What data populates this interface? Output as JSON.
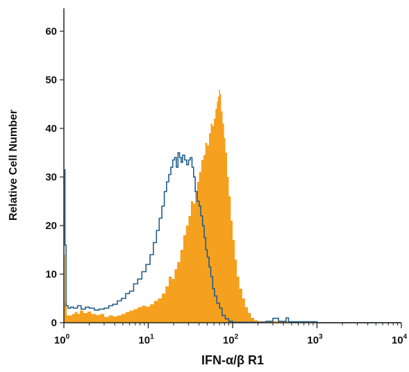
{
  "chart_data": {
    "type": "area",
    "title": "",
    "xlabel": "IFN-α/β R1",
    "ylabel": "Relative Cell Number",
    "xscale": "log",
    "xlim": [
      1,
      10000
    ],
    "ylim": [
      0,
      65
    ],
    "yticks": [
      0,
      10,
      20,
      30,
      40,
      50,
      60
    ],
    "xticks": [
      {
        "value": 1,
        "base": "10",
        "exp": "0"
      },
      {
        "value": 10,
        "base": "10",
        "exp": "1"
      },
      {
        "value": 100,
        "base": "10",
        "exp": "2"
      },
      {
        "value": 1000,
        "base": "10",
        "exp": "3"
      },
      {
        "value": 10000,
        "base": "10",
        "exp": "4"
      }
    ],
    "grid": false,
    "legend": "none",
    "series": [
      {
        "style": "filled-histogram",
        "color": "#f5a01e",
        "points": [
          [
            1.0,
            14
          ],
          [
            1.03,
            4
          ],
          [
            1.08,
            1.5
          ],
          [
            1.15,
            1.5
          ],
          [
            1.25,
            1.8
          ],
          [
            1.35,
            2.2
          ],
          [
            1.45,
            1.8
          ],
          [
            1.55,
            2.5
          ],
          [
            1.7,
            2.0
          ],
          [
            1.9,
            2.3
          ],
          [
            2.1,
            1.8
          ],
          [
            2.4,
            1.6
          ],
          [
            2.7,
            1.8
          ],
          [
            3.0,
            1.2
          ],
          [
            3.4,
            1.5
          ],
          [
            3.8,
            1.3
          ],
          [
            4.3,
            1.5
          ],
          [
            4.8,
            1.8
          ],
          [
            5.4,
            2.2
          ],
          [
            6.0,
            2.5
          ],
          [
            6.7,
            2.8
          ],
          [
            7.5,
            3.2
          ],
          [
            8.4,
            3.5
          ],
          [
            9.4,
            3.3
          ],
          [
            10.5,
            3.8
          ],
          [
            11.7,
            4.5
          ],
          [
            13.0,
            5.0
          ],
          [
            14.5,
            6.0
          ],
          [
            16.0,
            7.5
          ],
          [
            17.5,
            9.5
          ],
          [
            19.0,
            9.0
          ],
          [
            20.5,
            11.0
          ],
          [
            22.0,
            12.5
          ],
          [
            24.0,
            15.0
          ],
          [
            26.0,
            18.0
          ],
          [
            28.0,
            20.0
          ],
          [
            30.0,
            22.0
          ],
          [
            32.0,
            25.0
          ],
          [
            34.0,
            24.5
          ],
          [
            36.0,
            27.0
          ],
          [
            38.0,
            29.0
          ],
          [
            40.0,
            31.0
          ],
          [
            42.5,
            33.5
          ],
          [
            45.0,
            34.5
          ],
          [
            47.5,
            37.0
          ],
          [
            50.0,
            36.5
          ],
          [
            52.5,
            39.0
          ],
          [
            55.0,
            41.0
          ],
          [
            57.5,
            40.5
          ],
          [
            60.0,
            42.0
          ],
          [
            62.5,
            44.0
          ],
          [
            65.0,
            45.5
          ],
          [
            67.0,
            46.5
          ],
          [
            69.0,
            48.0
          ],
          [
            71.0,
            47.0
          ],
          [
            73.0,
            43.5
          ],
          [
            76.0,
            41.0
          ],
          [
            79.0,
            38.0
          ],
          [
            82.0,
            35.0
          ],
          [
            86.0,
            30.0
          ],
          [
            90.0,
            26.0
          ],
          [
            95.0,
            21.0
          ],
          [
            100.0,
            17.0
          ],
          [
            106.0,
            13.0
          ],
          [
            112.0,
            9.5
          ],
          [
            120.0,
            7.0
          ],
          [
            130.0,
            5.0
          ],
          [
            140.0,
            3.2
          ],
          [
            152.0,
            2.0
          ],
          [
            165.0,
            1.0
          ],
          [
            180.0,
            0.5
          ],
          [
            200.0,
            0.3
          ],
          [
            500.0,
            0.1
          ]
        ]
      },
      {
        "style": "step-outline",
        "color": "#1f5c8a",
        "points": [
          [
            1.0,
            31.5
          ],
          [
            1.03,
            16.0
          ],
          [
            1.06,
            3.5
          ],
          [
            1.12,
            3.0
          ],
          [
            1.2,
            3.2
          ],
          [
            1.3,
            3.0
          ],
          [
            1.45,
            3.5
          ],
          [
            1.6,
            2.8
          ],
          [
            1.8,
            3.2
          ],
          [
            2.0,
            3.0
          ],
          [
            2.3,
            2.6
          ],
          [
            2.6,
            2.8
          ],
          [
            3.0,
            3.0
          ],
          [
            3.4,
            3.5
          ],
          [
            3.8,
            3.8
          ],
          [
            4.3,
            4.5
          ],
          [
            4.8,
            5.0
          ],
          [
            5.4,
            6.0
          ],
          [
            6.0,
            6.5
          ],
          [
            6.7,
            8.0
          ],
          [
            7.5,
            9.0
          ],
          [
            8.4,
            10.5
          ],
          [
            9.4,
            12.0
          ],
          [
            10.5,
            14.0
          ],
          [
            11.5,
            16.5
          ],
          [
            12.5,
            19.0
          ],
          [
            13.5,
            21.5
          ],
          [
            14.5,
            24.0
          ],
          [
            15.5,
            27.0
          ],
          [
            16.5,
            29.0
          ],
          [
            17.5,
            30.5
          ],
          [
            18.5,
            32.0
          ],
          [
            19.5,
            33.5
          ],
          [
            20.5,
            34.0
          ],
          [
            21.5,
            32.0
          ],
          [
            22.5,
            35.0
          ],
          [
            23.5,
            34.0
          ],
          [
            24.5,
            33.0
          ],
          [
            25.5,
            34.5
          ],
          [
            27.0,
            33.5
          ],
          [
            28.5,
            32.5
          ],
          [
            30.0,
            33.5
          ],
          [
            31.5,
            34.0
          ],
          [
            33.0,
            32.0
          ],
          [
            34.5,
            30.0
          ],
          [
            36.0,
            27.0
          ],
          [
            38.0,
            25.0
          ],
          [
            40.0,
            24.0
          ],
          [
            42.0,
            22.0
          ],
          [
            44.0,
            20.0
          ],
          [
            46.0,
            17.5
          ],
          [
            48.0,
            15.0
          ],
          [
            50.0,
            13.5
          ],
          [
            52.5,
            11.5
          ],
          [
            55.0,
            9.5
          ],
          [
            58.0,
            7.0
          ],
          [
            61.0,
            5.5
          ],
          [
            65.0,
            4.0
          ],
          [
            70.0,
            3.0
          ],
          [
            75.0,
            1.5
          ],
          [
            82.0,
            0.8
          ],
          [
            90.0,
            0.3
          ],
          [
            100.0,
            0.1
          ],
          [
            250.0,
            0.3
          ],
          [
            300.0,
            0.9
          ],
          [
            350.0,
            0.3
          ],
          [
            430.0,
            1.0
          ],
          [
            460.0,
            0.2
          ],
          [
            1000.0,
            0.0
          ],
          [
            10000.0,
            0.0
          ]
        ]
      }
    ]
  }
}
